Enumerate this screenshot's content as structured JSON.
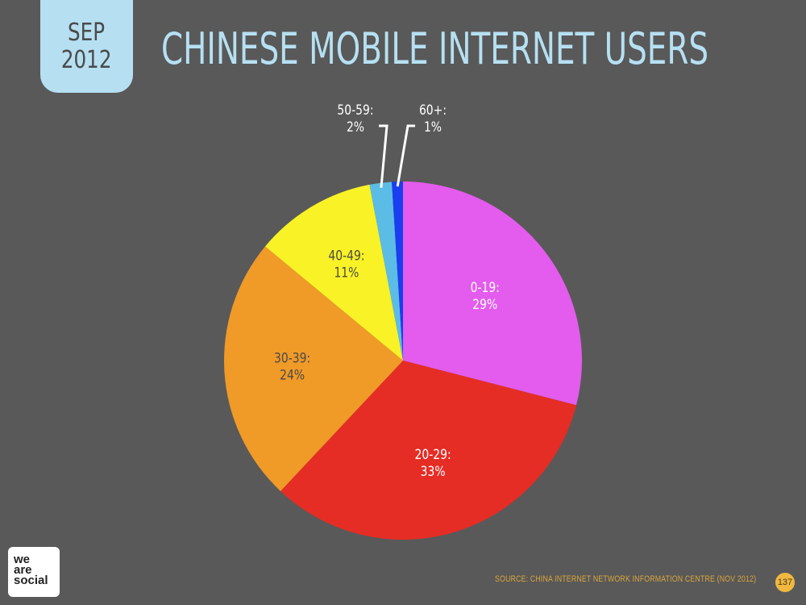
{
  "header": {
    "date_month": "SEP",
    "date_year": "2012",
    "title": "CHINESE MOBILE INTERNET USERS"
  },
  "chart_data": {
    "type": "pie",
    "title": "CHINESE MOBILE INTERNET USERS",
    "slices": [
      {
        "category": "0-19:",
        "value": 29,
        "label": "29%",
        "color": "#e35ced"
      },
      {
        "category": "20-29:",
        "value": 33,
        "label": "33%",
        "color": "#e52d25"
      },
      {
        "category": "30-39:",
        "value": 24,
        "label": "24%",
        "color": "#f09a27"
      },
      {
        "category": "40-49:",
        "value": 11,
        "label": "11%",
        "color": "#f9f226"
      },
      {
        "category": "50-59:",
        "value": 2,
        "label": "2%",
        "color": "#5bbde6"
      },
      {
        "category": "60+:",
        "value": 1,
        "label": "1%",
        "color": "#1a3ef0"
      }
    ],
    "start_angle_deg": 0,
    "direction": "clockwise"
  },
  "footer": {
    "logo_lines": [
      "we",
      "are",
      "social"
    ],
    "source": "SOURCE: CHINA INTERNET NETWORK INFORMATION CENTRE (NOV 2012)",
    "page_number": "137"
  }
}
